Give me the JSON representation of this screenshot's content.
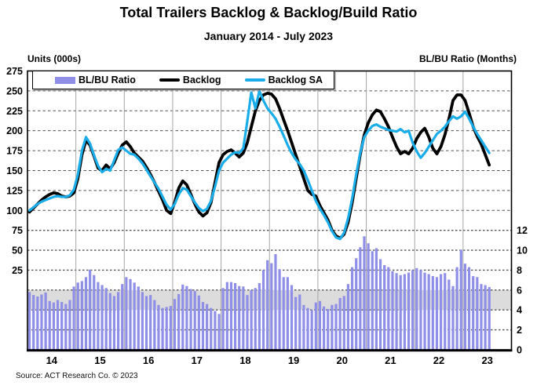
{
  "header": {
    "title": "Total Trailers Backlog & Backlog/Build Ratio",
    "subtitle": "January 2014 - July 2023"
  },
  "axes": {
    "left_caption": "Units (000s)",
    "right_caption": "BL/BU Ratio (Months)",
    "left_ticks": [
      275,
      250,
      225,
      200,
      175,
      150,
      125,
      100,
      75,
      50,
      25
    ],
    "right_ticks": [
      12,
      10,
      8,
      6,
      4,
      2,
      0
    ]
  },
  "legend": [
    {
      "label": "BL/BU Ratio",
      "type": "bar",
      "color": "#8f8fe8"
    },
    {
      "label": "Backlog",
      "type": "line",
      "color": "#000000"
    },
    {
      "label": "Backlog SA",
      "type": "line",
      "color": "#1badea"
    }
  ],
  "footer": {
    "source": "Source: ACT Research Co. © 2023"
  },
  "chart_data": {
    "type": "bar",
    "subtype": "combo-bar-line",
    "x_start": "2014-01",
    "x_end": "2023-07",
    "months_count": 115,
    "x_year_labels": [
      "14",
      "15",
      "16",
      "17",
      "18",
      "19",
      "20",
      "21",
      "22",
      "23"
    ],
    "left_axis": {
      "caption": "Units (000s)",
      "top": 275,
      "tick_step": 25
    },
    "right_axis": {
      "caption": "BL/BU Ratio (Months)",
      "min": 0,
      "max": 12,
      "tick_step": 2
    },
    "highlight_band": {
      "axis": "right",
      "from": 4,
      "to": 6,
      "color": "#dcdcdc"
    },
    "grid": {
      "horizontal": "dashed",
      "vertical": "solid-yearly"
    },
    "series": [
      {
        "name": "BL/BU Ratio",
        "type": "bar",
        "axis": "right",
        "color": "#8f8fe8",
        "values": [
          5.8,
          5.5,
          5.35,
          5.55,
          5.75,
          4.9,
          4.75,
          5.0,
          4.8,
          4.6,
          5.0,
          6.35,
          6.75,
          6.9,
          7.3,
          8.05,
          7.5,
          6.8,
          6.5,
          6.2,
          5.7,
          5.4,
          5.8,
          6.6,
          7.3,
          7.1,
          6.75,
          6.35,
          5.8,
          5.4,
          5.5,
          5.0,
          4.5,
          4.2,
          4.3,
          4.4,
          5.1,
          5.6,
          6.55,
          6.4,
          6.1,
          5.9,
          5.45,
          4.8,
          4.6,
          4.2,
          3.9,
          3.6,
          6.2,
          6.8,
          6.8,
          6.7,
          6.4,
          6.35,
          5.5,
          6.0,
          6.2,
          6.7,
          8.0,
          9.0,
          8.7,
          9.6,
          8.1,
          7.3,
          7.3,
          6.5,
          5.3,
          5.55,
          4.5,
          4.2,
          4.0,
          4.75,
          4.9,
          4.35,
          4.1,
          4.5,
          4.6,
          5.2,
          5.4,
          6.6,
          8.3,
          9.2,
          10.3,
          11.4,
          10.7,
          9.9,
          10.2,
          9.1,
          8.5,
          8.3,
          7.9,
          7.7,
          7.5,
          7.6,
          7.75,
          8.0,
          8.2,
          8.0,
          7.75,
          7.6,
          7.4,
          7.3,
          7.6,
          7.7,
          7.05,
          6.4,
          8.3,
          10.05,
          8.65,
          8.3,
          7.4,
          7.3,
          6.6,
          6.5,
          6.3
        ]
      },
      {
        "name": "Backlog",
        "type": "line",
        "axis": "left",
        "color": "#000000",
        "values": [
          98,
          103,
          108,
          113,
          117,
          120,
          122,
          121,
          118,
          117,
          118,
          122,
          140,
          170,
          188,
          182,
          168,
          153,
          150,
          157,
          152,
          160,
          172,
          182,
          186,
          180,
          172,
          167,
          162,
          154,
          145,
          135,
          124,
          113,
          100,
          96,
          110,
          128,
          137,
          132,
          120,
          108,
          98,
          93,
          97,
          110,
          135,
          160,
          170,
          174,
          176,
          172,
          167,
          172,
          185,
          205,
          225,
          238,
          245,
          247,
          246,
          240,
          228,
          214,
          200,
          185,
          170,
          155,
          140,
          125,
          120,
          118,
          106,
          97,
          88,
          75,
          68,
          65,
          70,
          85,
          110,
          140,
          170,
          195,
          210,
          220,
          226,
          224,
          215,
          205,
          192,
          180,
          171,
          174,
          171,
          178,
          190,
          198,
          203,
          192,
          178,
          171,
          180,
          195,
          215,
          238,
          245,
          245,
          238,
          222,
          205,
          193,
          183,
          170,
          157
        ]
      },
      {
        "name": "Backlog SA",
        "type": "line",
        "axis": "left",
        "color": "#1badea",
        "values": [
          100,
          104,
          108,
          111,
          113,
          115,
          117,
          118,
          117,
          117,
          119,
          126,
          145,
          175,
          192,
          184,
          169,
          156,
          148,
          152,
          150,
          163,
          176,
          179,
          175,
          171,
          170,
          165,
          159,
          151,
          143,
          135,
          127,
          117,
          107,
          101,
          108,
          120,
          128,
          126,
          118,
          110,
          103,
          99,
          102,
          112,
          130,
          150,
          160,
          165,
          170,
          173,
          172,
          178,
          212,
          248,
          228,
          250,
          238,
          228,
          222,
          215,
          205,
          194,
          182,
          172,
          164,
          158,
          150,
          138,
          125,
          112,
          102,
          94,
          85,
          74,
          66,
          64,
          72,
          90,
          115,
          145,
          172,
          192,
          200,
          206,
          208,
          205,
          203,
          201,
          200,
          199,
          202,
          198,
          200,
          185,
          174,
          166,
          172,
          180,
          188,
          196,
          200,
          205,
          212,
          218,
          215,
          218,
          224,
          215,
          205,
          196,
          188,
          180,
          172
        ]
      }
    ]
  }
}
